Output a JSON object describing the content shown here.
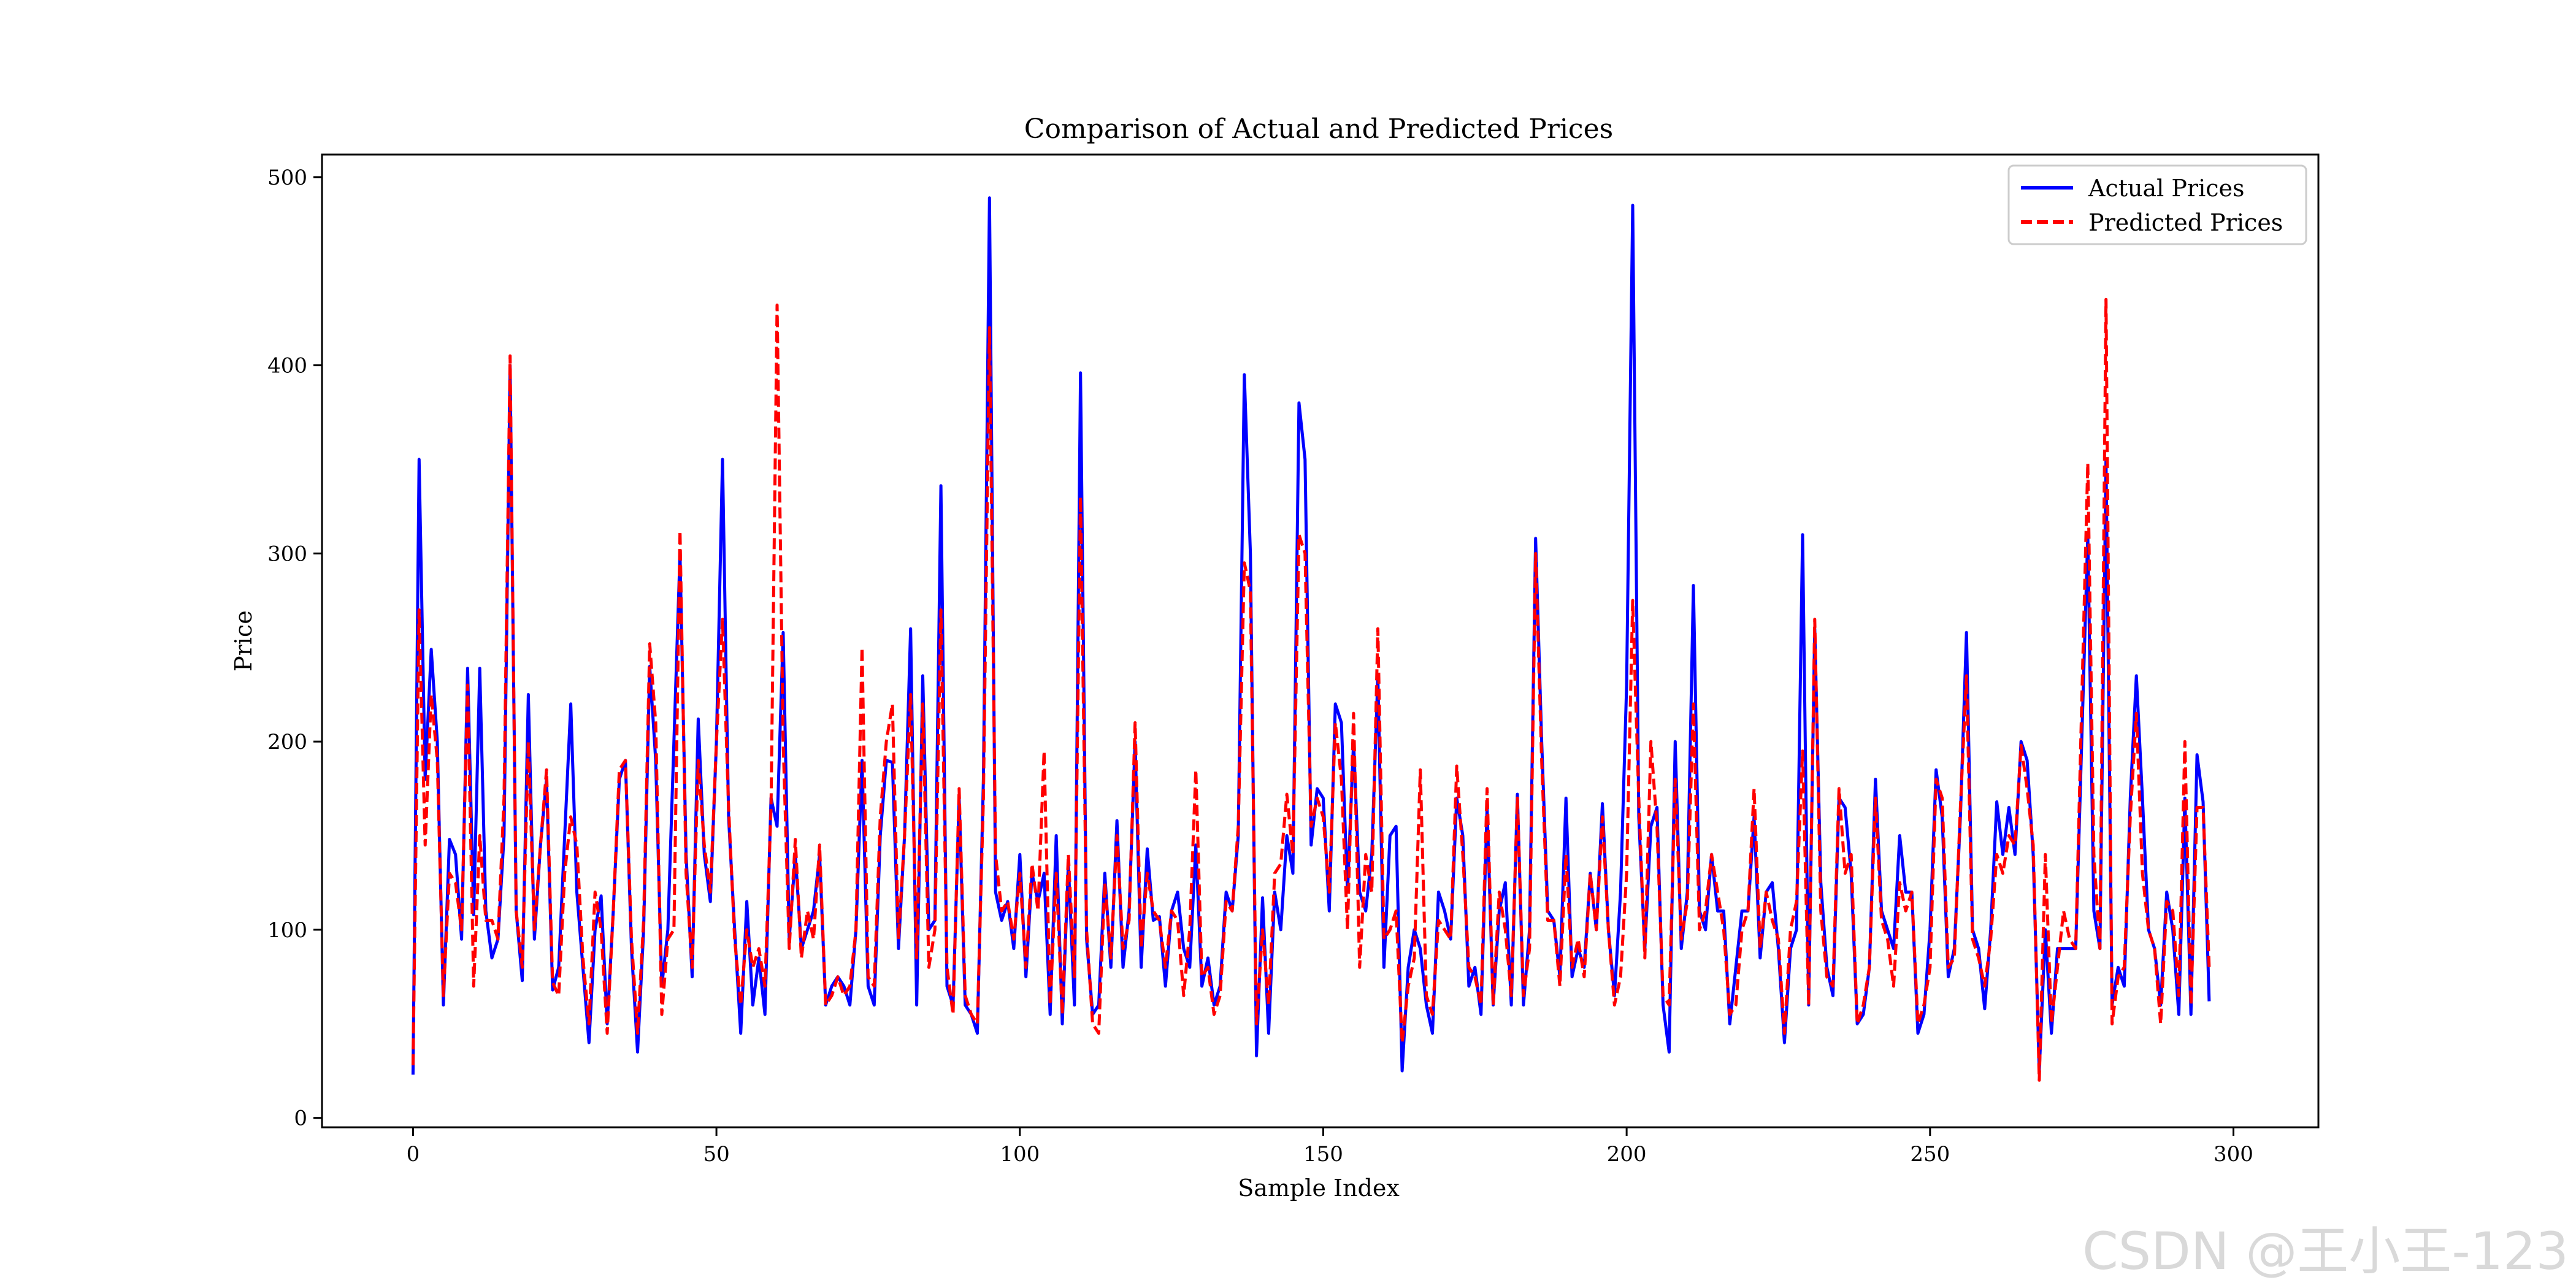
{
  "watermark": "CSDN @王小王-123",
  "chart_data": {
    "type": "line",
    "title": "Comparison of Actual and Predicted Prices",
    "xlabel": "Sample Index",
    "ylabel": "Price",
    "xlim": [
      -15,
      314
    ],
    "ylim": [
      -5,
      512
    ],
    "xticks": [
      0,
      50,
      100,
      150,
      200,
      250,
      300
    ],
    "yticks": [
      0,
      100,
      200,
      300,
      400,
      500
    ],
    "grid": false,
    "legend": "top-right",
    "series": [
      {
        "name": "Actual Prices",
        "color": "#0000ff",
        "style": "solid",
        "values": [
          23,
          350,
          180,
          249,
          200,
          60,
          148,
          140,
          95,
          239,
          108,
          239,
          110,
          85,
          95,
          150,
          400,
          110,
          73,
          225,
          95,
          145,
          180,
          68,
          80,
          150,
          220,
          120,
          80,
          40,
          100,
          118,
          50,
          110,
          180,
          190,
          90,
          35,
          100,
          240,
          190,
          70,
          100,
          200,
          300,
          140,
          75,
          212,
          140,
          115,
          200,
          350,
          160,
          100,
          45,
          115,
          60,
          85,
          55,
          170,
          155,
          258,
          95,
          140,
          90,
          100,
          110,
          140,
          60,
          70,
          75,
          70,
          60,
          100,
          190,
          70,
          60,
          150,
          190,
          189,
          90,
          150,
          260,
          60,
          235,
          100,
          105,
          336,
          70,
          60,
          170,
          60,
          55,
          45,
          180,
          489,
          120,
          105,
          115,
          90,
          140,
          75,
          130,
          115,
          130,
          55,
          150,
          50,
          135,
          60,
          396,
          95,
          55,
          60,
          130,
          80,
          158,
          80,
          110,
          200,
          80,
          143,
          105,
          107,
          70,
          110,
          120,
          90,
          80,
          145,
          70,
          85,
          60,
          70,
          120,
          110,
          150,
          395,
          300,
          33,
          117,
          45,
          120,
          100,
          150,
          130,
          380,
          350,
          145,
          175,
          170,
          110,
          220,
          210,
          120,
          200,
          120,
          110,
          140,
          235,
          80,
          150,
          155,
          25,
          80,
          100,
          90,
          60,
          45,
          120,
          110,
          95,
          170,
          150,
          70,
          80,
          55,
          165,
          60,
          110,
          125,
          60,
          172,
          60,
          100,
          308,
          200,
          110,
          105,
          75,
          170,
          75,
          90,
          80,
          130,
          100,
          167,
          100,
          65,
          120,
          230,
          485,
          160,
          90,
          155,
          165,
          60,
          35,
          200,
          90,
          120,
          283,
          110,
          100,
          140,
          110,
          110,
          50,
          80,
          110,
          110,
          160,
          85,
          120,
          125,
          90,
          40,
          90,
          100,
          310,
          60,
          260,
          125,
          80,
          65,
          170,
          165,
          130,
          50,
          55,
          80,
          180,
          110,
          100,
          90,
          150,
          120,
          120,
          45,
          55,
          100,
          185,
          160,
          75,
          90,
          160,
          258,
          100,
          90,
          58,
          100,
          168,
          140,
          165,
          140,
          200,
          190,
          140,
          25,
          100,
          45,
          90,
          90,
          90,
          90,
          200,
          310,
          110,
          90,
          350,
          60,
          80,
          70,
          170,
          235,
          170,
          100,
          90,
          60,
          120,
          100,
          55,
          170,
          55,
          193,
          168,
          62
        ]
      },
      {
        "name": "Predicted Prices",
        "color": "#ff0000",
        "style": "dashed",
        "values": [
          28,
          270,
          145,
          225,
          190,
          65,
          130,
          125,
          100,
          230,
          70,
          150,
          105,
          105,
          95,
          170,
          405,
          110,
          80,
          200,
          100,
          145,
          185,
          72,
          65,
          130,
          160,
          145,
          85,
          50,
          120,
          100,
          45,
          110,
          185,
          190,
          95,
          45,
          105,
          252,
          210,
          55,
          95,
          100,
          312,
          130,
          80,
          190,
          145,
          120,
          200,
          265,
          165,
          95,
          60,
          100,
          80,
          90,
          70,
          165,
          432,
          200,
          90,
          148,
          85,
          110,
          95,
          145,
          60,
          65,
          75,
          65,
          70,
          100,
          250,
          75,
          70,
          160,
          200,
          220,
          95,
          150,
          225,
          85,
          220,
          80,
          100,
          270,
          80,
          55,
          175,
          65,
          55,
          50,
          170,
          420,
          140,
          110,
          115,
          95,
          130,
          80,
          135,
          110,
          195,
          60,
          130,
          55,
          140,
          75,
          330,
          100,
          50,
          45,
          125,
          85,
          150,
          90,
          105,
          210,
          90,
          130,
          110,
          105,
          80,
          110,
          105,
          65,
          100,
          185,
          75,
          80,
          55,
          65,
          115,
          110,
          155,
          295,
          280,
          50,
          100,
          60,
          130,
          135,
          172,
          140,
          310,
          300,
          155,
          170,
          160,
          120,
          210,
          180,
          100,
          215,
          80,
          140,
          120,
          260,
          95,
          100,
          110,
          40,
          70,
          85,
          185,
          65,
          55,
          105,
          100,
          95,
          187,
          140,
          80,
          75,
          60,
          175,
          60,
          120,
          100,
          65,
          170,
          65,
          90,
          300,
          190,
          105,
          105,
          70,
          140,
          80,
          95,
          75,
          130,
          100,
          160,
          100,
          60,
          75,
          130,
          275,
          170,
          85,
          200,
          155,
          65,
          60,
          180,
          95,
          115,
          220,
          100,
          110,
          140,
          120,
          100,
          55,
          60,
          100,
          110,
          175,
          90,
          120,
          105,
          95,
          45,
          100,
          115,
          195,
          60,
          265,
          110,
          75,
          70,
          175,
          130,
          140,
          50,
          60,
          80,
          170,
          105,
          95,
          70,
          125,
          110,
          120,
          50,
          60,
          80,
          180,
          170,
          80,
          85,
          165,
          235,
          95,
          85,
          70,
          95,
          140,
          130,
          150,
          145,
          198,
          175,
          145,
          20,
          140,
          50,
          80,
          110,
          95,
          90,
          220,
          348,
          140,
          90,
          435,
          50,
          75,
          80,
          160,
          215,
          130,
          100,
          90,
          50,
          115,
          110,
          65,
          200,
          60,
          165,
          165,
          80
        ]
      }
    ]
  }
}
